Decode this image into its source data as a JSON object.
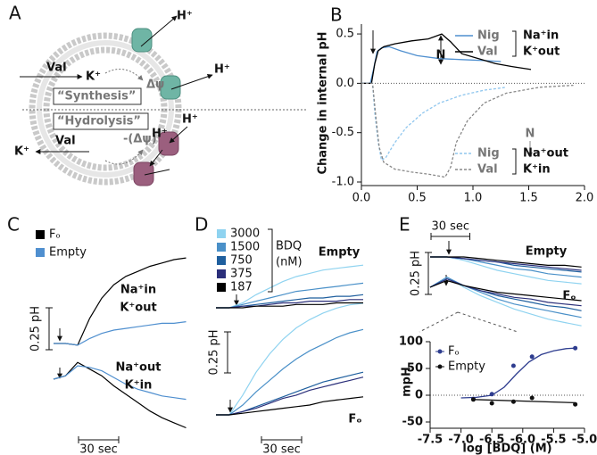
{
  "panel_letters": [
    "A",
    "B",
    "C",
    "D",
    "E"
  ],
  "diagram": {
    "labels": [
      "H⁺",
      "H⁺",
      "Val",
      "K⁺",
      "Δψ",
      "“Synthesis”",
      "“Hydrolysis”",
      "K⁺",
      "Val",
      "-(Δψ)",
      "H⁺",
      "H⁺"
    ]
  },
  "chart_data": [
    {
      "type": "line",
      "y_label": "Change in internal pH",
      "xlim": [
        0,
        2.0
      ],
      "ylim": [
        -1.0,
        0.6
      ],
      "xticks": [
        {
          "value": 0,
          "label": "0.0"
        },
        0.5,
        {
          "value": 1,
          "label": "1.0"
        },
        1.5,
        {
          "value": 2,
          "label": "2.0"
        }
      ],
      "yticks": [
        {
          "value": -1,
          "label": "-1.0"
        },
        -0.5,
        {
          "value": 0,
          "label": "0.0"
        },
        0.5
      ],
      "annotations": [
        "N",
        "N"
      ],
      "series": [
        {
          "name": "Nig",
          "condition": "Na⁺in",
          "color": "#4f8fcf",
          "dashed": false,
          "x": [
            0,
            0.08,
            0.11,
            0.14,
            0.18,
            0.25,
            0.35,
            0.5,
            0.7,
            0.9,
            1.1,
            1.25
          ],
          "values": [
            0,
            0,
            0.15,
            0.32,
            0.36,
            0.37,
            0.33,
            0.28,
            0.25,
            0.24,
            0.23,
            0.22
          ]
        },
        {
          "name": "Val",
          "condition": "K⁺out",
          "color": "#000000",
          "dashed": false,
          "x": [
            0,
            0.09,
            0.12,
            0.15,
            0.2,
            0.3,
            0.45,
            0.6,
            0.72,
            0.8,
            0.9,
            1.05,
            1.2,
            1.35,
            1.52
          ],
          "values": [
            0,
            0,
            0.2,
            0.33,
            0.37,
            0.4,
            0.43,
            0.45,
            0.5,
            0.42,
            0.3,
            0.25,
            0.2,
            0.17,
            0.14
          ]
        },
        {
          "name": "Nig",
          "condition": "Na⁺out",
          "color": "#8fc6ee",
          "dashed": true,
          "x": [
            0,
            0.1,
            0.12,
            0.15,
            0.18,
            0.22,
            0.3,
            0.4,
            0.55,
            0.7,
            0.9,
            1.1,
            1.3
          ],
          "values": [
            0,
            0,
            -0.3,
            -0.6,
            -0.78,
            -0.75,
            -0.6,
            -0.45,
            -0.3,
            -0.2,
            -0.12,
            -0.07,
            -0.04
          ]
        },
        {
          "name": "Val",
          "condition": "K⁺in",
          "color": "#888888",
          "dashed": true,
          "x": [
            0,
            0.1,
            0.13,
            0.16,
            0.2,
            0.3,
            0.45,
            0.6,
            0.75,
            0.8,
            0.85,
            0.95,
            1.1,
            1.3,
            1.6,
            1.9
          ],
          "values": [
            0,
            0,
            -0.35,
            -0.65,
            -0.8,
            -0.87,
            -0.9,
            -0.92,
            -0.95,
            -0.85,
            -0.6,
            -0.38,
            -0.2,
            -0.1,
            -0.04,
            -0.02
          ]
        }
      ]
    },
    {
      "type": "trace",
      "x": [
        0,
        9,
        18,
        27,
        36,
        45,
        54,
        63,
        72,
        81,
        90,
        99
      ],
      "group_labels": [
        [
          "Na⁺in",
          "K⁺out"
        ],
        [
          "Na⁺out",
          "K⁺in"
        ]
      ],
      "scale_bars": {
        "y": {
          "value": 0.25,
          "label": "0.25 pH"
        },
        "x": {
          "value": 30,
          "label": "30 sec"
        }
      },
      "series": [
        {
          "name": "Fₒ",
          "color": "#000000",
          "groups": [
            [
              0,
              0,
              -0.01,
              0.15,
              0.27,
              0.35,
              0.4,
              0.43,
              0.46,
              0.48,
              0.5,
              0.51
            ],
            [
              0,
              0.02,
              0.1,
              0.06,
              0.02,
              -0.04,
              -0.09,
              -0.14,
              -0.19,
              -0.23,
              -0.26,
              -0.29
            ]
          ]
        },
        {
          "name": "Empty",
          "color": "#4f8fcf",
          "groups": [
            [
              0,
              0,
              -0.01,
              0.03,
              0.06,
              0.08,
              0.09,
              0.1,
              0.11,
              0.12,
              0.12,
              0.13
            ],
            [
              0,
              0.02,
              0.08,
              0.07,
              0.05,
              0.01,
              -0.03,
              -0.06,
              -0.08,
              -0.1,
              -0.11,
              -0.12
            ]
          ]
        }
      ]
    },
    {
      "type": "trace",
      "x": [
        0,
        10,
        20,
        30,
        40,
        50,
        60,
        70,
        80,
        90,
        100,
        110
      ],
      "legend_title": [
        "BDQ",
        "(nM)"
      ],
      "group_labels": [
        [
          "Empty"
        ],
        [
          "Fₒ"
        ]
      ],
      "scale_bars": {
        "y": {
          "value": 0.25,
          "label": "0.25 pH"
        },
        "x": {
          "value": 30,
          "label": "30 sec"
        }
      },
      "series": [
        {
          "name": "3000",
          "color": "#8fd3f0",
          "groups": [
            [
              0,
              0,
              0.03,
              0.08,
              0.12,
              0.16,
              0.19,
              0.21,
              0.23,
              0.24,
              0.25,
              0.26
            ],
            [
              0,
              0,
              0.12,
              0.26,
              0.37,
              0.46,
              0.53,
              0.58,
              0.62,
              0.65,
              0.67,
              0.68
            ]
          ]
        },
        {
          "name": "1500",
          "color": "#4a90c8",
          "groups": [
            [
              0,
              0,
              0.02,
              0.04,
              0.06,
              0.08,
              0.1,
              0.11,
              0.12,
              0.13,
              0.14,
              0.15
            ],
            [
              0,
              0,
              0.06,
              0.14,
              0.21,
              0.28,
              0.34,
              0.39,
              0.43,
              0.47,
              0.5,
              0.52
            ]
          ]
        },
        {
          "name": "750",
          "color": "#1f5f9e",
          "groups": [
            [
              0,
              0,
              0.01,
              0.02,
              0.03,
              0.04,
              0.05,
              0.06,
              0.06,
              0.07,
              0.07,
              0.08
            ],
            [
              0,
              0,
              0.02,
              0.05,
              0.08,
              0.11,
              0.14,
              0.17,
              0.2,
              0.22,
              0.24,
              0.26
            ]
          ]
        },
        {
          "name": "375",
          "color": "#2b2f7a",
          "groups": [
            [
              0,
              0,
              0.01,
              0.01,
              0.02,
              0.03,
              0.03,
              0.04,
              0.04,
              0.04,
              0.05,
              0.05
            ],
            [
              0,
              0,
              0.02,
              0.04,
              0.07,
              0.1,
              0.12,
              0.15,
              0.17,
              0.19,
              0.21,
              0.23
            ]
          ]
        },
        {
          "name": "187",
          "color": "#000000",
          "groups": [
            [
              0,
              0,
              0,
              0.01,
              0.01,
              0.01,
              0.02,
              0.02,
              0.02,
              0.03,
              0.03,
              0.03
            ],
            [
              0,
              0,
              0.01,
              0.02,
              0.03,
              0.04,
              0.05,
              0.06,
              0.08,
              0.09,
              0.1,
              0.11
            ]
          ]
        }
      ]
    },
    {
      "type": "trace",
      "x": [
        0,
        13,
        26,
        39,
        52,
        65,
        78,
        91,
        104,
        117
      ],
      "group_labels": [
        [
          "Empty"
        ],
        [
          "Fₒ"
        ]
      ],
      "scale_bars": {
        "y": {
          "value": 0.25,
          "label": "0.25 pH"
        },
        "x": {
          "value": 30,
          "label": "30 sec"
        }
      },
      "series": [
        {
          "color": "#8fd3f0",
          "groups": [
            [
              0,
              0,
              -0.02,
              -0.05,
              -0.08,
              -0.1,
              -0.12,
              -0.14,
              -0.15,
              -0.16
            ],
            [
              0,
              0.06,
              0,
              -0.05,
              -0.09,
              -0.13,
              -0.16,
              -0.19,
              -0.21,
              -0.23
            ]
          ]
        },
        {
          "color": "#4a90c8",
          "groups": [
            [
              0,
              0,
              -0.01,
              -0.03,
              -0.05,
              -0.07,
              -0.08,
              -0.1,
              -0.11,
              -0.12
            ],
            [
              0,
              0.06,
              0.01,
              -0.03,
              -0.07,
              -0.1,
              -0.12,
              -0.14,
              -0.16,
              -0.18
            ]
          ]
        },
        {
          "color": "#1f5f9e",
          "groups": [
            [
              0,
              0,
              -0.01,
              -0.02,
              -0.03,
              -0.05,
              -0.06,
              -0.07,
              -0.08,
              -0.09
            ],
            [
              0,
              0.05,
              0.01,
              -0.02,
              -0.05,
              -0.07,
              -0.09,
              -0.11,
              -0.12,
              -0.14
            ]
          ]
        },
        {
          "color": "#2b2f7a",
          "groups": [
            [
              0,
              0,
              -0.01,
              -0.02,
              -0.03,
              -0.04,
              -0.05,
              -0.06,
              -0.07,
              -0.08
            ],
            [
              0,
              0.05,
              0.01,
              -0.02,
              -0.04,
              -0.06,
              -0.07,
              -0.09,
              -0.1,
              -0.11
            ]
          ]
        },
        {
          "color": "#000000",
          "groups": [
            [
              0,
              0,
              0,
              -0.01,
              -0.02,
              -0.03,
              -0.04,
              -0.05,
              -0.05,
              -0.06
            ],
            [
              0,
              0.04,
              0.01,
              -0.01,
              -0.03,
              -0.04,
              -0.05,
              -0.06,
              -0.07,
              -0.08
            ]
          ]
        }
      ]
    },
    {
      "type": "scatter",
      "x_label": "log [BDQ] (M)",
      "y_label": "mpH",
      "xlim": [
        -7.5,
        -5.0
      ],
      "ylim": [
        -50,
        100
      ],
      "xticks": [
        -7.5,
        {
          "value": -7,
          "label": "-7.0"
        },
        -6.5,
        {
          "value": -6,
          "label": "-6.0"
        },
        -5.5,
        {
          "value": -5,
          "label": "-5.0"
        }
      ],
      "yticks": [
        -50,
        0,
        50,
        100
      ],
      "series": [
        {
          "name": "Fₒ",
          "color": "#2e3d8f",
          "x": [
            -6.8,
            -6.5,
            -6.15,
            -5.85,
            -5.15
          ],
          "values": [
            -7,
            2,
            55,
            72,
            88
          ],
          "fit_x": [
            -7.0,
            -6.75,
            -6.5,
            -6.3,
            -6.1,
            -5.9,
            -5.7,
            -5.5,
            -5.3,
            -5.15
          ],
          "fit_values": [
            -5,
            -4,
            0,
            15,
            40,
            62,
            76,
            83,
            87,
            88
          ]
        },
        {
          "name": "Empty",
          "color": "#111111",
          "x": [
            -6.8,
            -6.5,
            -6.15,
            -5.85,
            -5.15
          ],
          "values": [
            -8,
            -15,
            -12,
            -5,
            -17
          ],
          "fit_x": [
            -6.8,
            -5.15
          ],
          "fit_values": [
            -8,
            -14
          ]
        }
      ]
    }
  ]
}
